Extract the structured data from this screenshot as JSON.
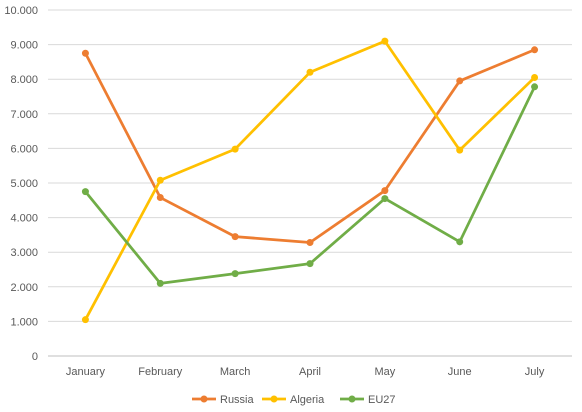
{
  "chart_data": {
    "type": "line",
    "categories": [
      "January",
      "February",
      "March",
      "April",
      "May",
      "June",
      "July"
    ],
    "series": [
      {
        "name": "Russia",
        "color": "#ED7D31",
        "values": [
          8750,
          4580,
          3450,
          3280,
          4780,
          7950,
          8850
        ]
      },
      {
        "name": "Algeria",
        "color": "#FFC000",
        "values": [
          1050,
          5080,
          5980,
          8200,
          9100,
          5950,
          8050
        ]
      },
      {
        "name": "EU27",
        "color": "#70AD47",
        "values": [
          4750,
          2100,
          2380,
          2670,
          4550,
          3300,
          7780
        ]
      }
    ],
    "y_ticks": [
      "0",
      "1.000",
      "2.000",
      "3.000",
      "4.000",
      "5.000",
      "6.000",
      "7.000",
      "8.000",
      "9.000",
      "10.000"
    ],
    "ylim": [
      0,
      10000
    ],
    "title": "",
    "xlabel": "",
    "ylabel": "",
    "grid": true,
    "legend": "bottom",
    "marker": "circle"
  }
}
